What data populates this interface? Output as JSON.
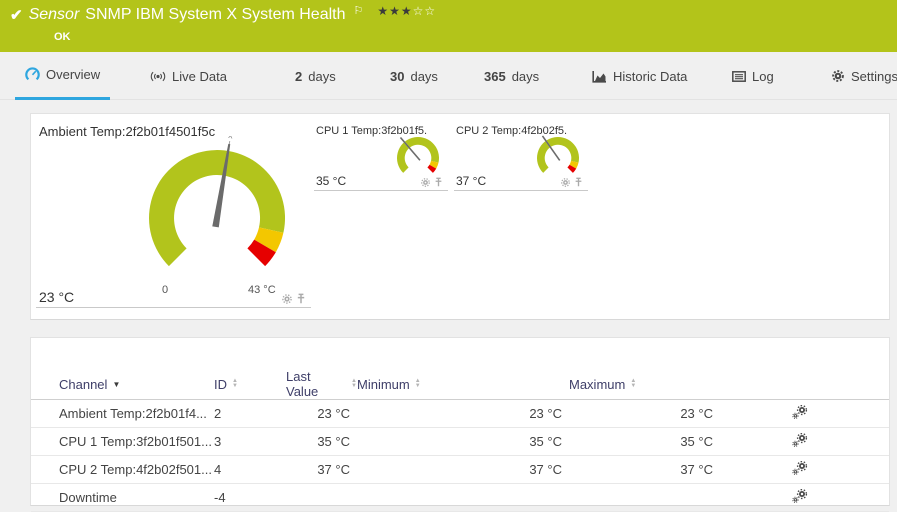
{
  "header": {
    "check_icon": "✔",
    "kind": "Sensor",
    "title": "SNMP IBM System X System Health",
    "flag_icon": "⚐",
    "stars_filled": "★★★",
    "stars_empty": "☆☆",
    "status": "OK"
  },
  "tabs": {
    "overview": {
      "label": "Overview"
    },
    "live_data": {
      "label": "Live Data"
    },
    "days2": {
      "num": "2",
      "label": "days"
    },
    "days30": {
      "num": "30",
      "label": "days"
    },
    "days365": {
      "num": "365",
      "label": "days"
    },
    "historic": {
      "label": "Historic Data"
    },
    "log": {
      "label": "Log"
    },
    "settings": {
      "label": "Settings"
    }
  },
  "gauges": {
    "ambient": {
      "title": "Ambient Temp:2f2b01f4501f5c",
      "value": 23,
      "value_label": "23 °C",
      "axis_min": 0,
      "axis_max": 43,
      "min_label": "0",
      "max_label": "43 °C",
      "avg_marker": "x̄"
    },
    "cpu1": {
      "title": "CPU 1 Temp:3f2b01f5...",
      "value": 35,
      "value_label": "35 °C",
      "axis_min": 0,
      "axis_max": 100
    },
    "cpu2": {
      "title": "CPU 2 Temp:4f2b02f5...",
      "value": 37,
      "value_label": "37 °C",
      "axis_min": 0,
      "axis_max": 100
    }
  },
  "channel_table": {
    "headers": {
      "channel": "Channel",
      "id": "ID",
      "last_value": "Last Value",
      "minimum": "Minimum",
      "maximum": "Maximum"
    },
    "rows": [
      {
        "channel": "Ambient Temp:2f2b01f4...",
        "id": "2",
        "last_value": "23 °C",
        "minimum": "23 °C",
        "maximum": "23 °C"
      },
      {
        "channel": "CPU 1 Temp:3f2b01f501...",
        "id": "3",
        "last_value": "35 °C",
        "minimum": "35 °C",
        "maximum": "35 °C"
      },
      {
        "channel": "CPU 2 Temp:4f2b02f501...",
        "id": "4",
        "last_value": "37 °C",
        "minimum": "37 °C",
        "maximum": "37 °C"
      },
      {
        "channel": "Downtime",
        "id": "-4",
        "last_value": "",
        "minimum": "",
        "maximum": ""
      }
    ]
  },
  "colors": {
    "status_ok_green": "#b3c41a",
    "gauge_green": "#b2c41c",
    "gauge_yellow": "#f3c700",
    "gauge_red": "#e60000",
    "active_tab_blue": "#2ea6df"
  }
}
